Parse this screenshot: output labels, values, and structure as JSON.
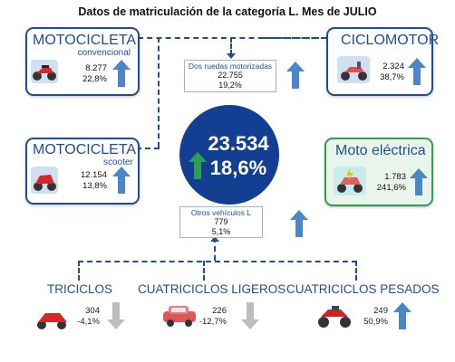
{
  "title": "Datos de matriculación de la categoría L. Mes de JULIO",
  "center": {
    "total": "23.534",
    "pct": "18,6%"
  },
  "dos_ruedas": {
    "label": "Dos ruedas motorizadas",
    "value": "22.755",
    "pct": "19,2%"
  },
  "otros": {
    "label": "Otros vehículos L",
    "value": "779",
    "pct": "5,1%"
  },
  "moto_conv": {
    "title": "MOTOCICLETA",
    "subtitle": "convencional",
    "value": "8.277",
    "pct": "22,8%"
  },
  "ciclomotor": {
    "title": "CICLOMOTOR",
    "value": "2.324",
    "pct": "38,7%"
  },
  "moto_scooter": {
    "title": "MOTOCICLETA",
    "subtitle": "scooter",
    "value": "12.154",
    "pct": "13,8%"
  },
  "moto_electrica": {
    "title": "Moto eléctrica",
    "value": "1.783",
    "pct": "241,6%"
  },
  "triciclos": {
    "title": "TRICICLOS",
    "value": "304",
    "pct": "-4,1%"
  },
  "cuad_ligeros": {
    "title": "CUATRICICLOS LIGEROS",
    "value": "226",
    "pct": "-12,7%"
  },
  "cuad_pesados": {
    "title": "CUATRICICLOS PESADOS",
    "value": "249",
    "pct": "50,9%"
  },
  "colors": {
    "blue": "#1f4e96",
    "arrow_up": "#4a86c8",
    "arrow_down": "#bdbdbd",
    "green": "#2f9e55",
    "circle": "#123f92"
  }
}
